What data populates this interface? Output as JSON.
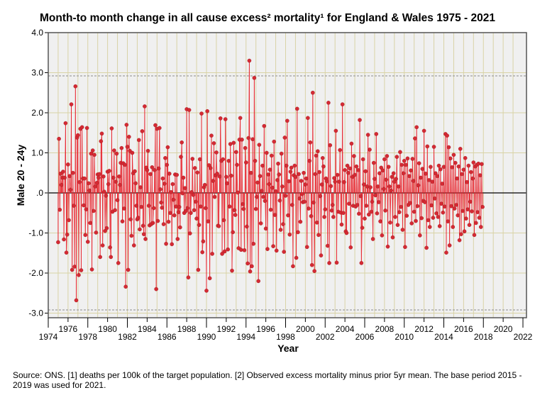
{
  "chart_data": {
    "type": "line",
    "title": "Month-to month change in all cause excess² mortality¹  for England & Wales 1975 - 2021",
    "xlabel": "Year",
    "ylabel": "Male 20 - 24y",
    "xlim": [
      1974,
      2022.4
    ],
    "ylim": [
      -3.1,
      4.0
    ],
    "yticks": [
      "4.0",
      "3.0",
      "2.0",
      "1.0",
      ".0",
      "-1.0",
      "-2.0",
      "-3.0"
    ],
    "ytick_values": [
      4,
      3,
      2,
      1,
      0,
      -1,
      -2,
      -3
    ],
    "xticks": [
      "1974",
      "1976",
      "1978",
      "1980",
      "1982",
      "1984",
      "1986",
      "1988",
      "1990",
      "1992",
      "1994",
      "1996",
      "1998",
      "2000",
      "2002",
      "2004",
      "2006",
      "2008",
      "2010",
      "2012",
      "2014",
      "2016",
      "2018",
      "2020",
      "2022"
    ],
    "reference_lines": [
      2.92,
      -2.92,
      0
    ],
    "grid": true,
    "start_year": 1975,
    "series": [
      {
        "name": "Male 20 - 24y",
        "color": "#e8262f",
        "values": [
          -1.23,
          1.35,
          -0.42,
          0.48,
          0.2,
          0.38,
          0.53,
          -1.16,
          0.38,
          1.74,
          -1.49,
          -1.04,
          0.71,
          -0.68,
          0.42,
          0.08,
          2.21,
          -1.92,
          0.5,
          -0.32,
          -1.84,
          2.66,
          -2.68,
          1.38,
          1.44,
          -2.05,
          0.27,
          1.6,
          -1.93,
          1.64,
          0.36,
          -0.31,
          0.36,
          -1.05,
          -0.41,
          1.62,
          -1.22,
          0.24,
          0.06,
          -0.75,
          0.98,
          -1.91,
          1.06,
          -0.45,
          0.95,
          0.16,
          -0.99,
          0.25,
          0.46,
          0.38,
          0.47,
          -1.6,
          1.29,
          1.48,
          -1.31,
          0.41,
          0.03,
          -0.95,
          -0.07,
          -0.88,
          0.53,
          0.22,
          0.55,
          -1.36,
          -1.6,
          1.61,
          -0.47,
          0.38,
          1.06,
          -0.43,
          0.28,
          0.98,
          -0.18,
          -1.75,
          0.41,
          0.2,
          0.75,
          1.12,
          -0.71,
          0.74,
          -0.39,
          0.7,
          -2.34,
          1.7,
          1.15,
          -1.92,
          1.4,
          1.05,
          -0.66,
          -1.07,
          1.0,
          0.49,
          -1.31,
          0.54,
          0.24,
          -0.32,
          -0.66,
          -0.62,
          1.32,
          -0.91,
          0.14,
          -0.35,
          1.54,
          -0.82,
          -1.03,
          2.16,
          -1.15,
          0.63,
          0.57,
          1.05,
          -0.32,
          -0.81,
          0.47,
          -0.78,
          0.64,
          -0.75,
          -0.38,
          0.57,
          1.69,
          -2.4,
          1.6,
          -0.7,
          0.61,
          1.62,
          0.09,
          -0.24,
          -0.37,
          0.36,
          -0.78,
          0.23,
          0.87,
          -1.27,
          0.7,
          1.14,
          -0.72,
          0.48,
          -0.5,
          0.02,
          -1.28,
          0.22,
          -0.17,
          -0.56,
          0.46,
          -0.34,
          0.45,
          -1.15,
          -0.48,
          -0.35,
          -0.86,
          0.9,
          1.26,
          -0.01,
          0.38,
          -0.5,
          0.12,
          -0.45,
          2.09,
          -0.38,
          -2.11,
          2.07,
          -1.01,
          -0.5,
          0.02,
          0.85,
          -0.05,
          -0.43,
          0.62,
          -0.22,
          -0.64,
          0.51,
          -1.92,
          -0.8,
          0.84,
          -0.34,
          1.98,
          -1.48,
          -1.21,
          0.14,
          0.2,
          -0.38,
          -2.44,
          2.04,
          -0.71,
          0.69,
          -2.13,
          0.62,
          1.43,
          -1.52,
          0.3,
          1.24,
          -0.1,
          0.44,
          1.01,
          0.48,
          -0.82,
          -0.83,
          0.41,
          1.86,
          0.8,
          -1.52,
          0.84,
          -0.68,
          -1.46,
          1.84,
          0.4,
          0.24,
          -1.41,
          0.8,
          -0.34,
          1.22,
          0.43,
          -1.94,
          -0.98,
          1.25,
          -0.43,
          -0.55,
          1.02,
          0.7,
          0.01,
          -1.38,
          1.33,
          1.87,
          -1.42,
          1.33,
          -0.28,
          -0.4,
          -1.43,
          1.12,
          0.76,
          -0.84,
          -1.76,
          1.37,
          3.3,
          -1.96,
          0.5,
          -1.83,
          1.34,
          -1.27,
          2.87,
          0.8,
          -0.4,
          -0.1,
          0.26,
          -2.2,
          1.2,
          0.42,
          -0.76,
          0.05,
          0.68,
          -0.1,
          1.67,
          -0.2,
          -0.89,
          1.0,
          -1.4,
          0.46,
          0.22,
          0.58,
          -0.42,
          0.93,
          0.13,
          -1.33,
          1.28,
          -0.55,
          0.04,
          -1.44,
          0.32,
          0.73,
          0.46,
          -0.19,
          -0.92,
          0.98,
          0.16,
          -0.78,
          -1.47,
          1.38,
          -0.07,
          0.68,
          1.8,
          -0.56,
          0.29,
          -1.04,
          0.53,
          0.63,
          -0.3,
          -1.83,
          0.44,
          0.68,
          0.4,
          -1.62,
          2.1,
          -0.98,
          0.47,
          -0.14,
          -0.72,
          0.3,
          -0.03,
          -0.23,
          0.5,
          -0.22,
          0.21,
          0.36,
          -1.35,
          1.87,
          -0.39,
          0.8,
          1.26,
          -0.58,
          -1.8,
          2.5,
          -0.24,
          -1.95,
          0.47,
          0.93,
          -0.74,
          1.04,
          -1.05,
          0.52,
          -0.08,
          -1.56,
          0.21,
          0.87,
          0.66,
          -0.6,
          -0.41,
          0.36,
          0.29,
          -1.32,
          2.25,
          -1.75,
          1.19,
          0.17,
          -0.44,
          -0.3,
          -0.6,
          0.37,
          0.28,
          1.55,
          -1.74,
          0.45,
          -0.47,
          0.28,
          1.07,
          -0.49,
          -0.79,
          2.21,
          -0.5,
          0.27,
          0.57,
          -0.96,
          -1.0,
          0.68,
          0.5,
          -0.27,
          0.61,
          -1.36,
          1.23,
          0.4,
          -0.32,
          0.92,
          0.45,
          -0.34,
          0.66,
          -0.3,
          0.57,
          -0.52,
          1.82,
          -0.08,
          -1.75,
          -0.87,
          0.84,
          0.21,
          -0.64,
          0.54,
          -0.32,
          0.16,
          1.45,
          -0.54,
          1.08,
          0.14,
          -0.47,
          -0.22,
          -1.15,
          0.75,
          0.35,
          -0.06,
          1.47,
          -0.51,
          0.16,
          -0.23,
          0.49,
          -0.71,
          0.63,
          -1.06,
          0.56,
          0.1,
          0.84,
          -0.44,
          0.33,
          0.92,
          -1.34,
          0.65,
          0.16,
          -0.74,
          0.06,
          0.4,
          -1.11,
          0.49,
          0.28,
          -0.6,
          0.35,
          0.9,
          -0.8,
          0.16,
          -0.48,
          1.02,
          -0.35,
          0.7,
          -0.92,
          0.49,
          0.8,
          -1.35,
          0.7,
          -0.57,
          0.86,
          -0.3,
          0.42,
          -0.25,
          0.56,
          -0.76,
          0.85,
          0.3,
          -0.47,
          1.36,
          -0.7,
          1.64,
          -0.33,
          0.19,
          0.74,
          -1.06,
          0.38,
          -0.63,
          0.6,
          -0.2,
          1.55,
          -0.23,
          0.48,
          -1.37,
          1.16,
          -0.68,
          0.32,
          -0.85,
          0.65,
          -0.31,
          0.28,
          -0.62,
          1.15,
          -0.14,
          0.49,
          -0.51,
          0.42,
          -0.6,
          0.68,
          -0.83,
          0.59,
          -0.27,
          0.23,
          -0.49,
          0.65,
          -0.34,
          1.47,
          -1.49,
          1.43,
          -0.71,
          1.14,
          -1.31,
          0.86,
          -0.33,
          0.64,
          -0.85,
          0.95,
          -0.39,
          0.75,
          -0.3,
          0.36,
          -0.56,
          0.66,
          -1.18,
          1.1,
          -1.03,
          0.47,
          -0.45,
          0.58,
          -0.96,
          0.87,
          -0.64,
          0.27,
          -0.41,
          0.68,
          -0.8,
          -0.22,
          0.52,
          -0.46,
          0.36,
          0.76,
          -1.05,
          0.66,
          -0.75,
          0.7,
          -0.48,
          0.73,
          -0.62,
          0.44,
          -0.85,
          0.72,
          -0.35
        ]
      }
    ]
  },
  "footnote": "Source: ONS. [1] deaths per 100k of the target population. [2] Observed excess mortality minus prior 5yr mean. The base period 2015 - 2019 was used for 2021."
}
